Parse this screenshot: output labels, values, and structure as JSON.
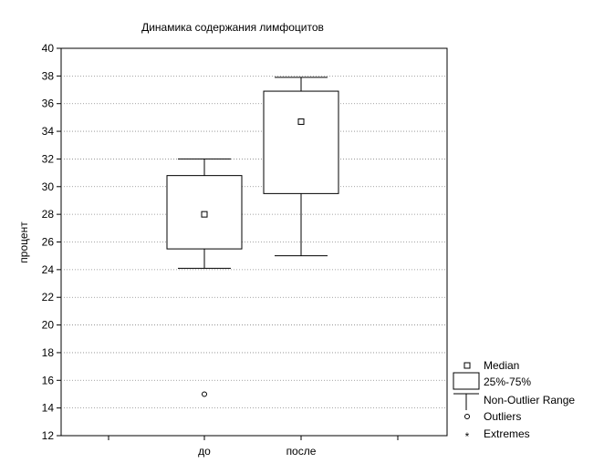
{
  "chart_data": {
    "type": "box",
    "title": "Динамика содержания лимфоцитов",
    "xlabel": "",
    "ylabel": "процент",
    "ylim": [
      12,
      40
    ],
    "yticks": [
      12,
      14,
      16,
      18,
      20,
      22,
      24,
      26,
      28,
      30,
      32,
      34,
      36,
      38,
      40
    ],
    "categories": [
      "до",
      "после"
    ],
    "boxes": [
      {
        "category": "до",
        "median": 28.0,
        "q1": 25.5,
        "q3": 30.8,
        "whisker_low": 24.1,
        "whisker_high": 32.0,
        "outliers": [
          15.0
        ],
        "extremes": []
      },
      {
        "category": "после",
        "median": 34.7,
        "q1": 29.5,
        "q3": 36.9,
        "whisker_low": 25.0,
        "whisker_high": 37.9,
        "outliers": [],
        "extremes": []
      }
    ],
    "grid": true,
    "legend_position": "bottom-right",
    "legend": [
      {
        "symbol": "median",
        "label": "Median"
      },
      {
        "symbol": "box",
        "label": "25%-75%"
      },
      {
        "symbol": "whisker",
        "label": "Non-Outlier Range"
      },
      {
        "symbol": "outlier",
        "label": "Outliers"
      },
      {
        "symbol": "extreme",
        "label": "Extremes"
      }
    ]
  }
}
